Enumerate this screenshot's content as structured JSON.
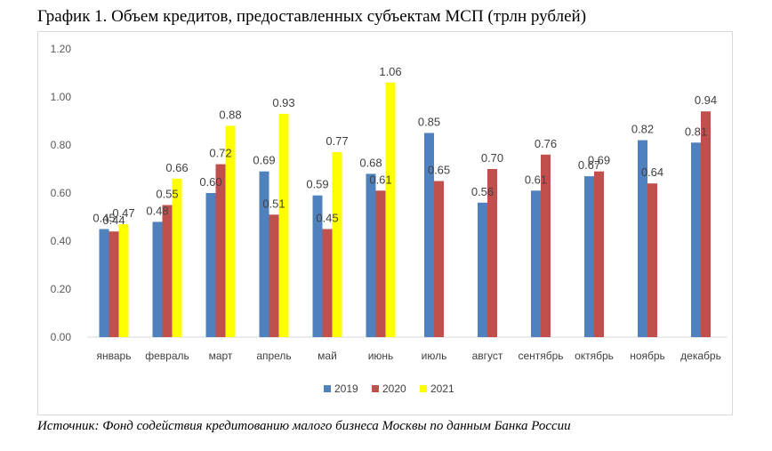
{
  "title": "График 1. Объем кредитов, предоставленных субъектам МСП (трлн рублей)",
  "source": "Источник: Фонд содействия кредитованию малого бизнеса Москвы по данным Банка России",
  "chart_data": {
    "type": "bar",
    "title": "График 1. Объем кредитов, предоставленных субъектам МСП (трлн рублей)",
    "categories": [
      "январь",
      "февраль",
      "март",
      "апрель",
      "май",
      "июнь",
      "июль",
      "август",
      "сентябрь",
      "октябрь",
      "ноябрь",
      "декабрь"
    ],
    "series": [
      {
        "name": "2019",
        "color": "#4f81bd",
        "values": [
          0.45,
          0.48,
          0.6,
          0.69,
          0.59,
          0.68,
          0.85,
          0.56,
          0.61,
          0.67,
          0.82,
          0.81
        ]
      },
      {
        "name": "2020",
        "color": "#c0504d",
        "values": [
          0.44,
          0.55,
          0.72,
          0.51,
          0.45,
          0.61,
          0.65,
          0.7,
          0.76,
          0.69,
          0.64,
          0.94
        ]
      },
      {
        "name": "2021",
        "color": "#ffff00",
        "values": [
          0.47,
          0.66,
          0.88,
          0.93,
          0.77,
          1.06,
          null,
          null,
          null,
          null,
          null,
          null
        ]
      }
    ],
    "y_ticks": [
      "0.00",
      "0.20",
      "0.40",
      "0.60",
      "0.80",
      "1.00",
      "1.20"
    ],
    "ylim": [
      0,
      1.2
    ],
    "grid": false,
    "legend": "bottom",
    "xlabel": "",
    "ylabel": ""
  }
}
